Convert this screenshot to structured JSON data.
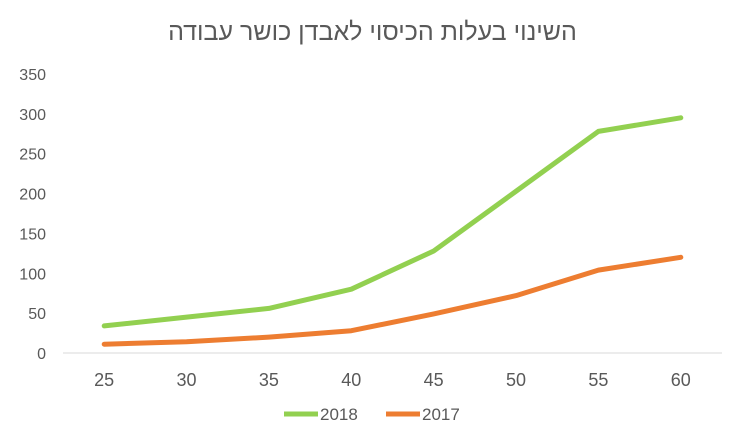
{
  "chart_data": {
    "type": "line",
    "title": "השינוי בעלות הכיסוי לאבדן כושר עבודה",
    "xlabel": "",
    "ylabel": "",
    "categories": [
      25,
      30,
      35,
      40,
      45,
      50,
      55,
      60
    ],
    "ylim": [
      0,
      350
    ],
    "yticks": [
      0,
      50,
      100,
      150,
      200,
      250,
      300,
      350
    ],
    "grid": false,
    "legend_position": "bottom",
    "series": [
      {
        "name": "2018",
        "color": "#92D050",
        "values": [
          34,
          45,
          56,
          80,
          128,
          203,
          278,
          295
        ]
      },
      {
        "name": "2017",
        "color": "#ED7D31",
        "values": [
          11,
          14,
          20,
          28,
          49,
          72,
          104,
          120
        ]
      }
    ]
  }
}
